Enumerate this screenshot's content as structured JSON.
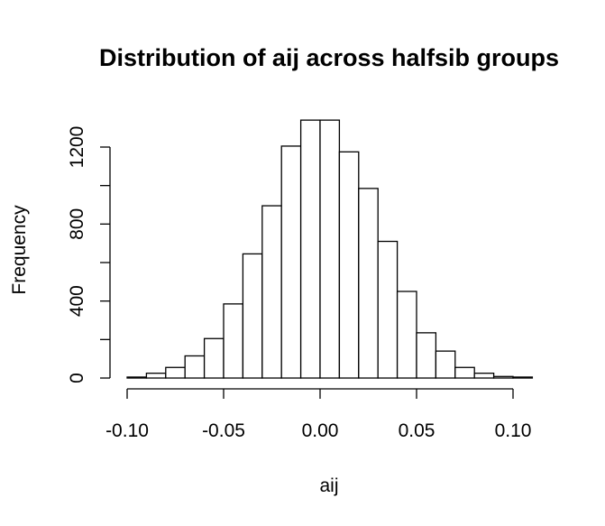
{
  "chart_data": {
    "type": "bar",
    "title": "Distribution of aij across halfsib groups",
    "xlabel": "aij",
    "ylabel": "Frequency",
    "bin_edges": [
      -0.1,
      -0.09,
      -0.08,
      -0.07,
      -0.06,
      -0.05,
      -0.04,
      -0.03,
      -0.02,
      -0.01,
      0.0,
      0.01,
      0.02,
      0.03,
      0.04,
      0.05,
      0.06,
      0.07,
      0.08,
      0.09,
      0.1,
      0.11
    ],
    "values": [
      5,
      25,
      55,
      115,
      205,
      385,
      645,
      895,
      1205,
      1340,
      1340,
      1175,
      985,
      710,
      450,
      235,
      140,
      55,
      25,
      8,
      5
    ],
    "xlim": [
      -0.1,
      0.1
    ],
    "ylim": [
      0,
      1200
    ],
    "x_ticks": [
      -0.1,
      -0.05,
      0.0,
      0.05,
      0.1
    ],
    "x_tick_labels": [
      "-0.10",
      "-0.05",
      "0.00",
      "0.05",
      "0.10"
    ],
    "y_ticks": [
      0,
      200,
      400,
      600,
      800,
      1000,
      1200
    ],
    "y_tick_labels": [
      "0",
      "",
      "400",
      "",
      "800",
      "",
      "1200"
    ],
    "grid": false,
    "legend": "none"
  }
}
